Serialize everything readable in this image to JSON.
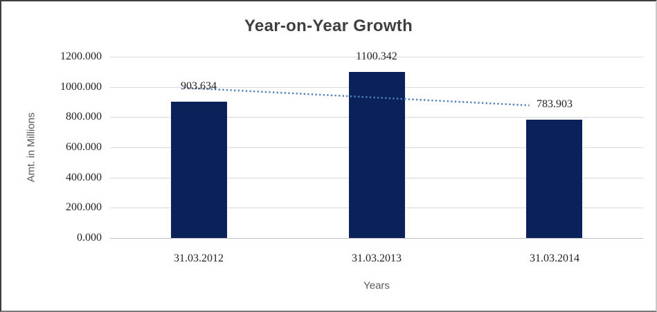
{
  "window": {
    "background": "#ffffff"
  },
  "chart_data": {
    "type": "bar",
    "title": "Year-on-Year Growth",
    "xlabel": "Years",
    "ylabel": "Amt. in Millions",
    "categories": [
      "31.03.2012",
      "31.03.2013",
      "31.03.2014"
    ],
    "values": [
      903.634,
      1100.342,
      783.903
    ],
    "data_labels": [
      "903.634",
      "1100.342",
      "783.903"
    ],
    "ylim": [
      0,
      1200
    ],
    "ytick_step": 200,
    "ytick_labels": [
      "0.000",
      "200.000",
      "400.000",
      "600.000",
      "800.000",
      "1000.000",
      "1200.000"
    ],
    "grid": true,
    "legend": false,
    "bar_color": "#0a215a",
    "gridline_color": "#d9d9d9",
    "axis_line_color": "#bfbfbf",
    "trendline": {
      "type": "linear",
      "style": "dotted",
      "color": "#4f81bd"
    }
  }
}
